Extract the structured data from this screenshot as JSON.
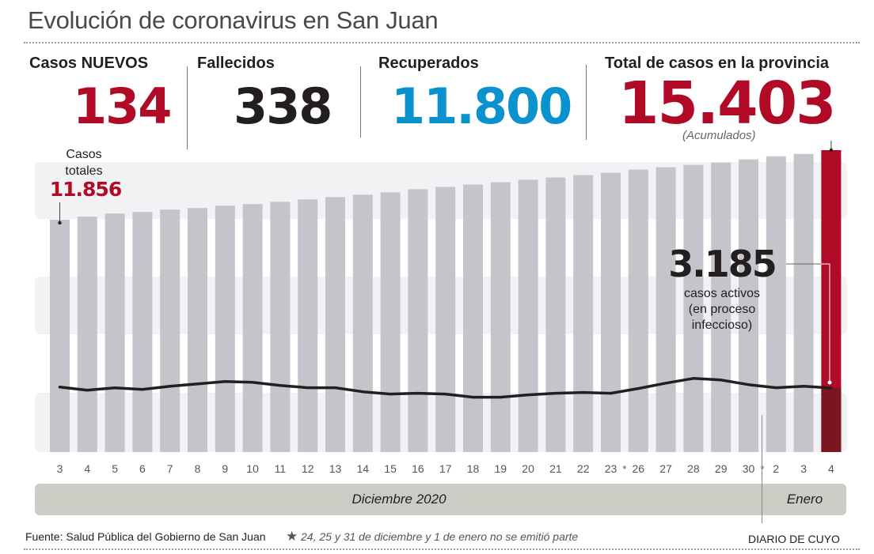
{
  "header": {
    "title": "Evolución de coronavirus en San Juan"
  },
  "stats": [
    {
      "label": "Casos NUEVOS",
      "value": "134",
      "color": "#b10a26"
    },
    {
      "label": "Fallecidos",
      "value": "338",
      "color": "#231f20"
    },
    {
      "label": "Recuperados",
      "value": "11.800",
      "color": "#0a92cf"
    },
    {
      "label": "Total de casos en la provincia",
      "value": "15.403",
      "color": "#b10a26",
      "note": "(Acumulados)"
    }
  ],
  "annotations": {
    "first_total_label_1": "Casos",
    "first_total_label_2": "totales",
    "first_total_value": "11.856",
    "active_value": "3.185",
    "active_label_1": "casos activos",
    "active_label_2": "(en proceso",
    "active_label_3": "infeccioso)"
  },
  "months": {
    "december": "Diciembre 2020",
    "january": "Enero"
  },
  "footer": {
    "source": "Fuente: Salud Pública del Gobierno de San Juan",
    "note_star": "★",
    "note": "24, 25 y 31 de diciembre y 1 de enero no se emitió parte",
    "credit": "DIARIO DE CUYO"
  },
  "colors": {
    "bar": "#c5c4cb",
    "highlight_bar": "#b10a26",
    "highlight_bar_dark": "#7a1620",
    "line": "#231f20",
    "band": "#f2f2f4"
  },
  "chart_data": {
    "type": "bar",
    "title": "Evolución de coronavirus en San Juan",
    "xlabel": "",
    "ylabel": "",
    "categories": [
      "3",
      "4",
      "5",
      "6",
      "7",
      "8",
      "9",
      "10",
      "11",
      "12",
      "13",
      "14",
      "15",
      "16",
      "17",
      "18",
      "19",
      "20",
      "21",
      "22",
      "23",
      "26",
      "27",
      "28",
      "29",
      "30",
      "2",
      "3",
      "4"
    ],
    "category_separators": [
      {
        "after_index": 20,
        "label": "*"
      },
      {
        "after_index": 25,
        "label": "*"
      }
    ],
    "series": [
      {
        "name": "Casos totales",
        "type": "bar",
        "values": [
          11856,
          12010,
          12170,
          12250,
          12370,
          12450,
          12570,
          12650,
          12770,
          12890,
          13010,
          13130,
          13250,
          13410,
          13530,
          13650,
          13770,
          13890,
          14010,
          14130,
          14250,
          14410,
          14530,
          14650,
          14770,
          14930,
          15090,
          15210,
          15403
        ]
      },
      {
        "name": "Casos activos",
        "type": "line",
        "values": [
          3235,
          3080,
          3195,
          3120,
          3275,
          3390,
          3510,
          3470,
          3315,
          3200,
          3200,
          3000,
          2885,
          2925,
          2885,
          2730,
          2730,
          2845,
          2925,
          2965,
          2925,
          3160,
          3430,
          3665,
          3585,
          3355,
          3200,
          3275,
          3185
        ]
      }
    ],
    "highlight_index": 28,
    "labels": {
      "first_total": "11.856",
      "last_total": "15.403",
      "last_active": "3.185"
    },
    "ylim": [
      0,
      15403
    ],
    "grid": false,
    "legend": "none",
    "month_groups": [
      {
        "label": "Diciembre 2020",
        "from_index": 0,
        "to_index": 25
      },
      {
        "label": "Enero",
        "from_index": 26,
        "to_index": 28
      }
    ]
  }
}
